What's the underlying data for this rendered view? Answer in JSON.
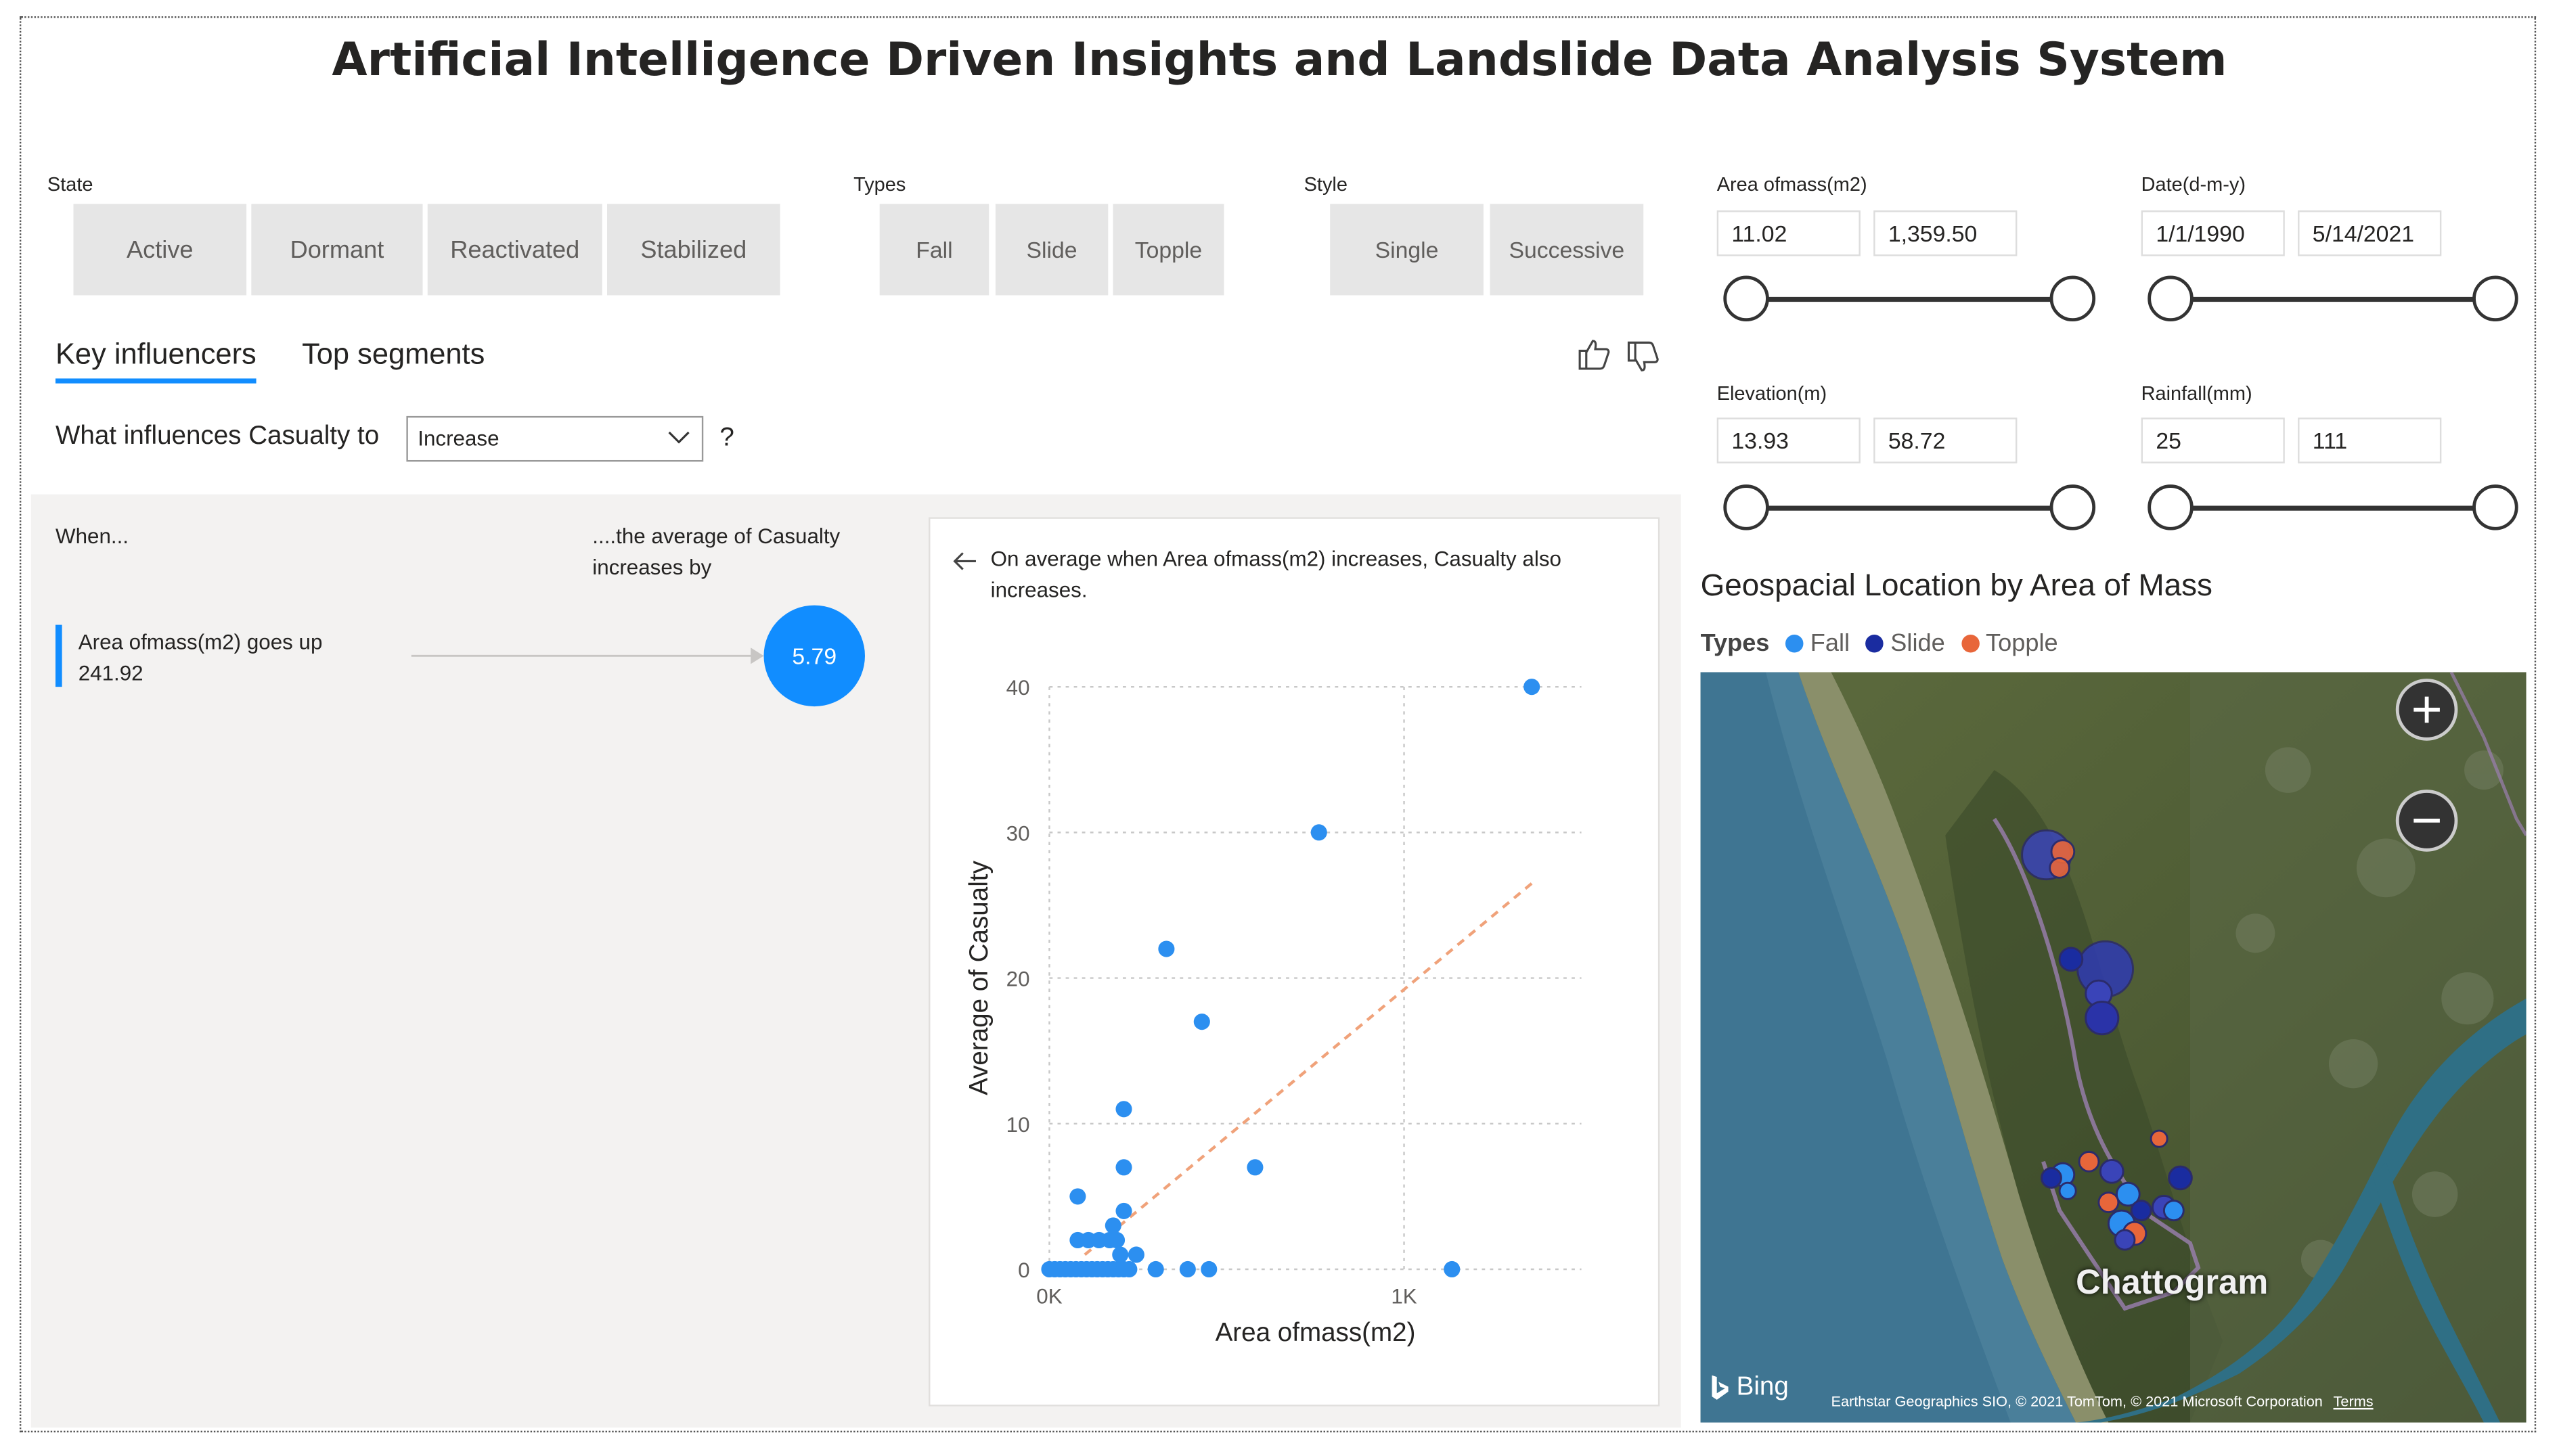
{
  "title": "Artificial Intelligence Driven Insights and Landslide Data Analysis System",
  "slicers": {
    "state": {
      "label": "State",
      "options": [
        "Active",
        "Dormant",
        "Reactivated",
        "Stabilized"
      ]
    },
    "types": {
      "label": "Types",
      "options": [
        "Fall",
        "Slide",
        "Topple"
      ]
    },
    "style": {
      "label": "Style",
      "options": [
        "Single",
        "Successive"
      ]
    }
  },
  "ranges": {
    "area": {
      "label": "Area ofmass(m2)",
      "min": "11.02",
      "max": "1,359.50"
    },
    "date": {
      "label": "Date(d-m-y)",
      "min": "1/1/1990",
      "max": "5/14/2021"
    },
    "elevation": {
      "label": "Elevation(m)",
      "min": "13.93",
      "max": "58.72"
    },
    "rainfall": {
      "label": "Rainfall(mm)",
      "min": "25",
      "max": "111"
    }
  },
  "key_influencers": {
    "tabs": [
      "Key influencers",
      "Top segments"
    ],
    "question_prefix": "What influences Casualty to",
    "dropdown_value": "Increase",
    "question_suffix": "?",
    "when_label": "When...",
    "then_label_1": "....the average of Casualty",
    "then_label_2": "increases by",
    "factor_line1": "Area ofmass(m2) goes up",
    "factor_line2": "241.92",
    "impact": "5.79",
    "explanation_line1": "On average when Area ofmass(m2) increases, Casualty also",
    "explanation_line2": "increases."
  },
  "chart_data": {
    "type": "scatter",
    "xlabel": "Area ofmass(m2)",
    "ylabel": "Average of Casualty",
    "x_ticks": [
      "0K",
      "1K"
    ],
    "y_ticks": [
      "0",
      "10",
      "20",
      "30",
      "40"
    ],
    "xlim": [
      0,
      1500
    ],
    "ylim": [
      0,
      40
    ],
    "points": [
      [
        0,
        0
      ],
      [
        15,
        0
      ],
      [
        30,
        0
      ],
      [
        45,
        0
      ],
      [
        60,
        0
      ],
      [
        75,
        0
      ],
      [
        90,
        0
      ],
      [
        105,
        0
      ],
      [
        120,
        0
      ],
      [
        135,
        0
      ],
      [
        150,
        0
      ],
      [
        165,
        0
      ],
      [
        180,
        0
      ],
      [
        195,
        0
      ],
      [
        210,
        0
      ],
      [
        225,
        0
      ],
      [
        300,
        0
      ],
      [
        390,
        0
      ],
      [
        450,
        0
      ],
      [
        1135,
        0
      ],
      [
        200,
        1
      ],
      [
        245,
        1
      ],
      [
        80,
        2
      ],
      [
        110,
        2
      ],
      [
        140,
        2
      ],
      [
        170,
        2
      ],
      [
        190,
        2
      ],
      [
        180,
        3
      ],
      [
        210,
        4
      ],
      [
        80,
        5
      ],
      [
        210,
        7
      ],
      [
        580,
        7
      ],
      [
        210,
        11
      ],
      [
        430,
        17
      ],
      [
        330,
        22
      ],
      [
        760,
        30
      ],
      [
        1360,
        40
      ]
    ],
    "trendline": {
      "from": [
        100,
        1
      ],
      "to": [
        1360,
        26.5
      ]
    }
  },
  "map": {
    "title": "Geospacial Location by Area of Mass",
    "legend_title": "Types",
    "legend": [
      {
        "name": "Fall",
        "color": "#2c8ff0"
      },
      {
        "name": "Slide",
        "color": "#1a2ca0"
      },
      {
        "name": "Topple",
        "color": "#e8663a"
      }
    ],
    "city_label": "Chattogram",
    "bing_label": "Bing",
    "attribution": "Earthstar Geographics SIO, © 2021 TomTom, © 2021 Microsoft Corporation",
    "terms_label": "Terms"
  }
}
